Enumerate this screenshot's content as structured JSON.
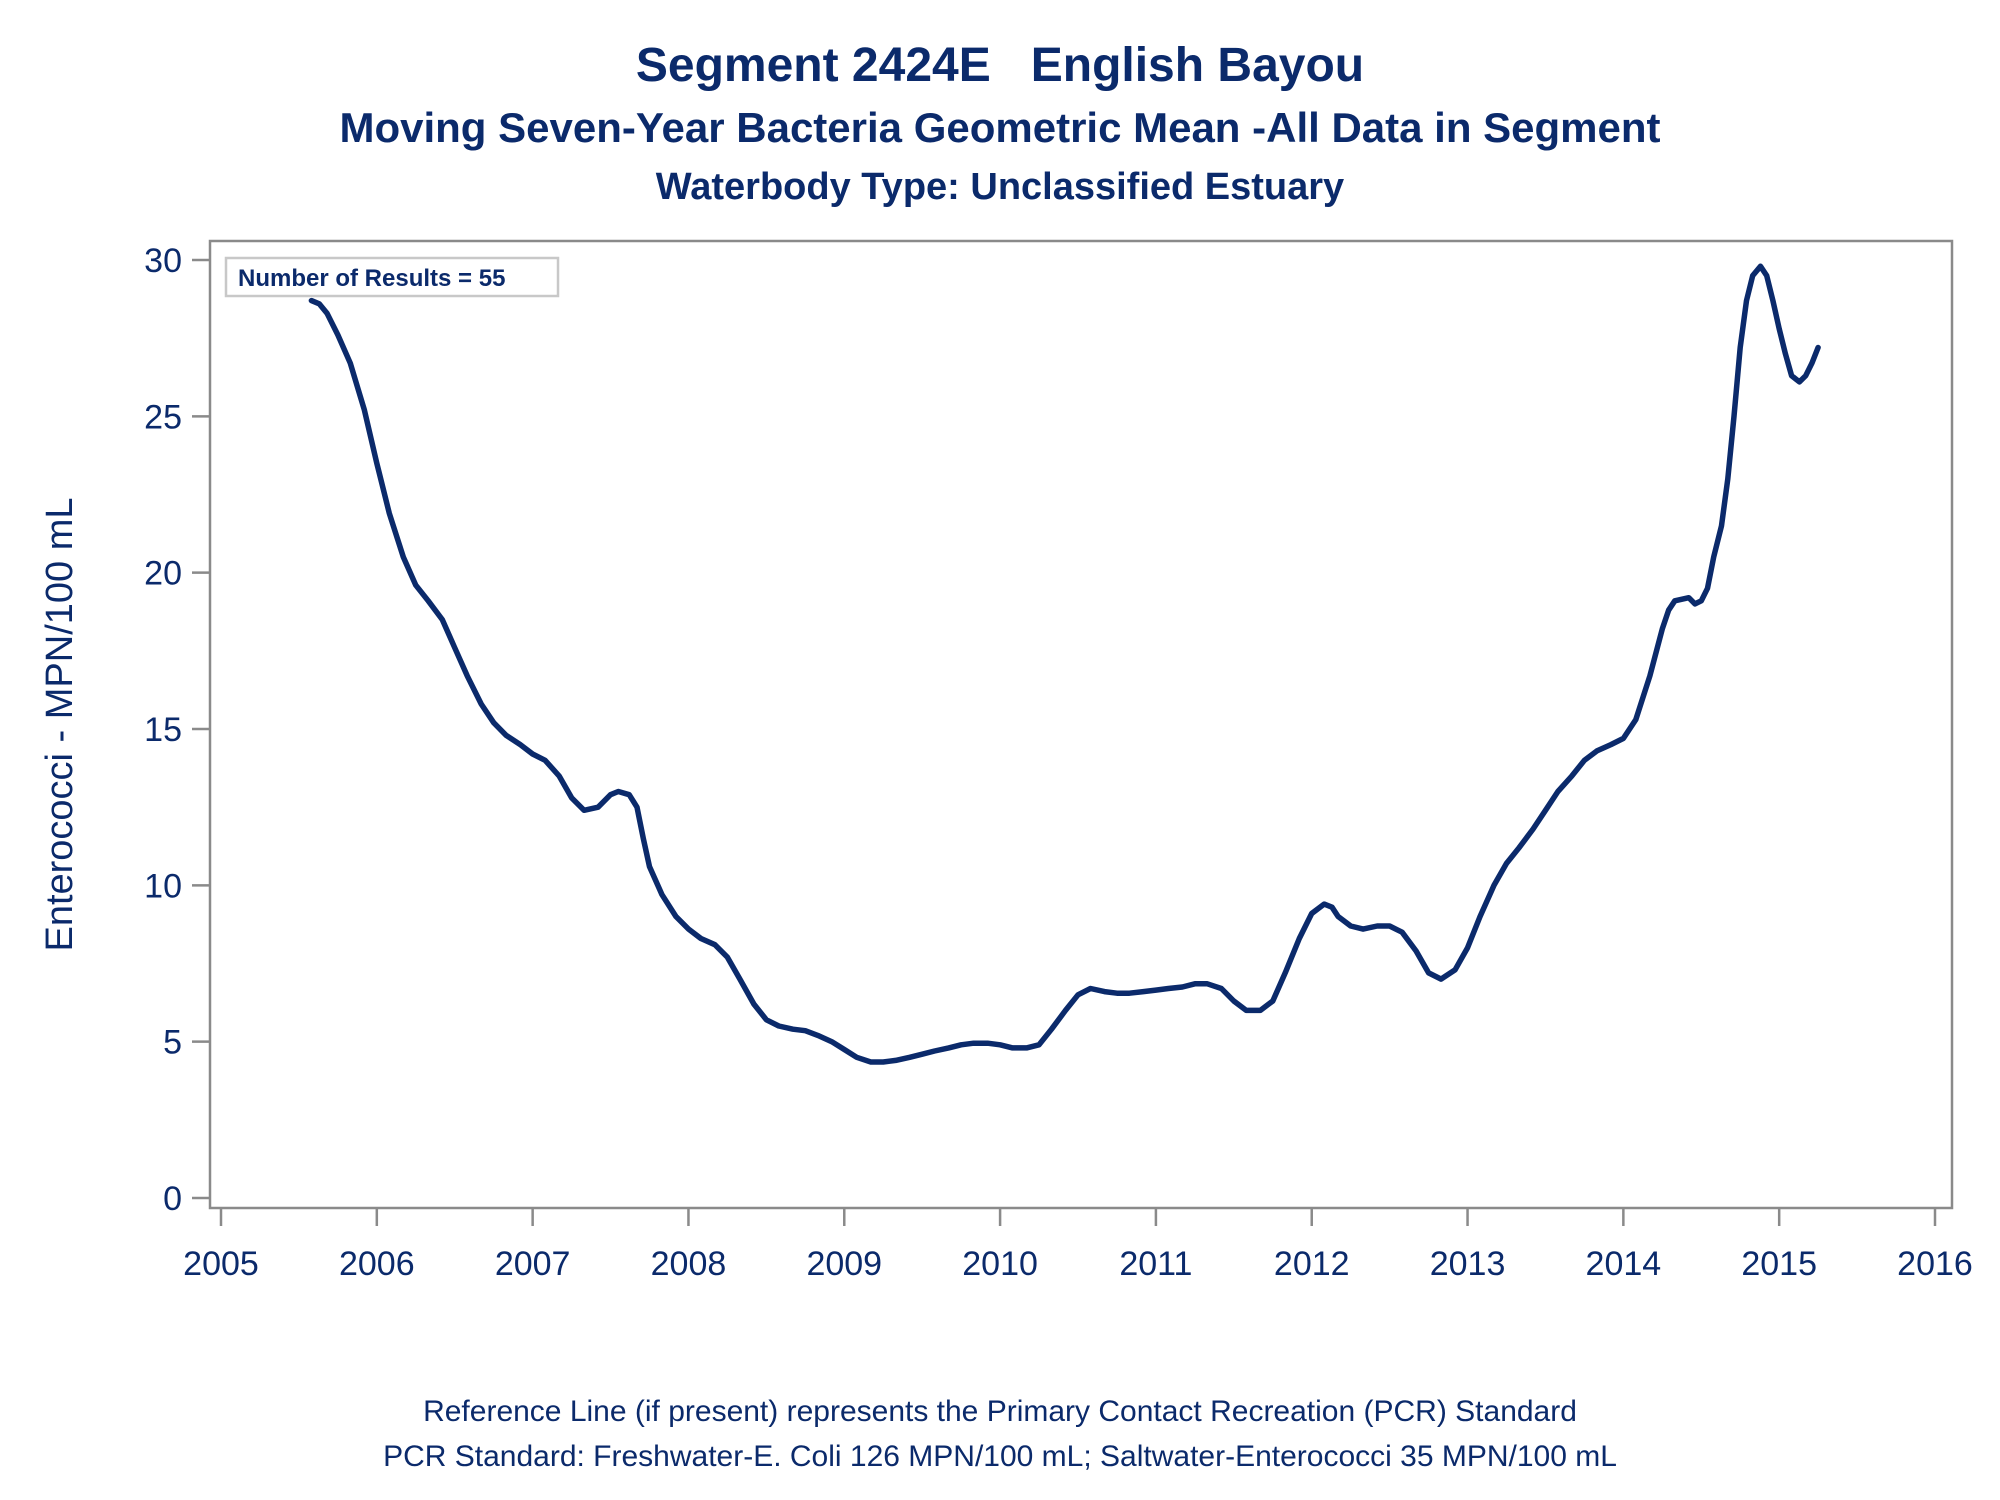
{
  "titles": {
    "line1": "Segment 2424E   English Bayou",
    "line2": "Moving Seven-Year Bacteria Geometric Mean -All Data in Segment",
    "line3": "Waterbody Type: Unclassified Estuary"
  },
  "footnotes": {
    "line1": "Reference Line (if present) represents the Primary Contact Recreation (PCR) Standard",
    "line2": "PCR Standard: Freshwater-E. Coli 126 MPN/100 mL; Saltwater-Enterococci 35 MPN/100 mL"
  },
  "colors": {
    "line": "#0b2a6b",
    "text": "#0b2a6b",
    "frame": "#8a8a8a"
  },
  "chart_data": {
    "type": "line",
    "ylabel": "Enterococci - MPN/100 mL",
    "xlabel": "",
    "xlim": [
      2005,
      2016
    ],
    "ylim": [
      0,
      30
    ],
    "xticks": [
      "2005",
      "2006",
      "2007",
      "2008",
      "2009",
      "2010",
      "2011",
      "2012",
      "2013",
      "2014",
      "2015",
      "2016"
    ],
    "yticks": [
      "0",
      "5",
      "10",
      "15",
      "20",
      "25",
      "30"
    ],
    "annotation": "Number of Results = 55",
    "annotation_position": "top-left",
    "grid": false,
    "series": [
      {
        "x": [
          2005.58,
          2005.63,
          2005.68,
          2005.75,
          2005.83,
          2005.92,
          2006.0,
          2006.08,
          2006.17,
          2006.25,
          2006.33,
          2006.42,
          2006.5,
          2006.58,
          2006.67,
          2006.75,
          2006.83,
          2006.92,
          2007.0,
          2007.08,
          2007.17,
          2007.25,
          2007.33,
          2007.42,
          2007.5,
          2007.55,
          2007.62,
          2007.67,
          2007.71,
          2007.75,
          2007.83,
          2007.92,
          2008.0,
          2008.08,
          2008.17,
          2008.25,
          2008.33,
          2008.42,
          2008.5,
          2008.58,
          2008.67,
          2008.75,
          2008.83,
          2008.92,
          2009.0,
          2009.08,
          2009.17,
          2009.25,
          2009.33,
          2009.42,
          2009.5,
          2009.58,
          2009.67,
          2009.75,
          2009.83,
          2009.92,
          2010.0,
          2010.08,
          2010.17,
          2010.25,
          2010.33,
          2010.42,
          2010.5,
          2010.58,
          2010.67,
          2010.75,
          2010.83,
          2010.92,
          2011.0,
          2011.08,
          2011.17,
          2011.25,
          2011.33,
          2011.42,
          2011.5,
          2011.58,
          2011.67,
          2011.75,
          2011.83,
          2011.92,
          2012.0,
          2012.08,
          2012.13,
          2012.17,
          2012.25,
          2012.33,
          2012.42,
          2012.5,
          2012.58,
          2012.67,
          2012.75,
          2012.83,
          2012.92,
          2013.0,
          2013.08,
          2013.17,
          2013.25,
          2013.33,
          2013.42,
          2013.5,
          2013.58,
          2013.67,
          2013.75,
          2013.83,
          2013.92,
          2014.0,
          2014.08,
          2014.17,
          2014.25,
          2014.29,
          2014.33,
          2014.42,
          2014.46,
          2014.5,
          2014.54,
          2014.58,
          2014.63,
          2014.67,
          2014.71,
          2014.75,
          2014.79,
          2014.83,
          2014.88,
          2014.92,
          2014.96,
          2015.0,
          2015.04,
          2015.08,
          2015.13,
          2015.17,
          2015.21,
          2015.25
        ],
        "values": [
          28.7,
          28.6,
          28.3,
          27.6,
          26.7,
          25.2,
          23.5,
          21.9,
          20.5,
          19.6,
          19.1,
          18.5,
          17.6,
          16.7,
          15.8,
          15.2,
          14.8,
          14.5,
          14.2,
          14.0,
          13.5,
          12.8,
          12.4,
          12.5,
          12.9,
          13.0,
          12.9,
          12.5,
          11.5,
          10.6,
          9.7,
          9.0,
          8.6,
          8.3,
          8.1,
          7.7,
          7.0,
          6.2,
          5.7,
          5.5,
          5.4,
          5.35,
          5.2,
          5.0,
          4.75,
          4.5,
          4.35,
          4.35,
          4.4,
          4.5,
          4.6,
          4.7,
          4.8,
          4.9,
          4.95,
          4.95,
          4.9,
          4.8,
          4.8,
          4.9,
          5.4,
          6.0,
          6.5,
          6.7,
          6.6,
          6.55,
          6.55,
          6.6,
          6.65,
          6.7,
          6.75,
          6.85,
          6.85,
          6.7,
          6.3,
          6.0,
          6.0,
          6.3,
          7.2,
          8.3,
          9.1,
          9.4,
          9.3,
          9.0,
          8.7,
          8.6,
          8.7,
          8.7,
          8.5,
          7.9,
          7.2,
          7.0,
          7.3,
          8.0,
          9.0,
          10.0,
          10.7,
          11.2,
          11.8,
          12.4,
          13.0,
          13.5,
          14.0,
          14.3,
          14.5,
          14.7,
          15.3,
          16.7,
          18.2,
          18.8,
          19.1,
          19.2,
          19.0,
          19.1,
          19.5,
          20.5,
          21.5,
          23.0,
          25.0,
          27.2,
          28.7,
          29.5,
          29.8,
          29.5,
          28.7,
          27.8,
          27.0,
          26.3,
          26.1,
          26.3,
          26.7,
          27.2
        ]
      }
    ]
  }
}
